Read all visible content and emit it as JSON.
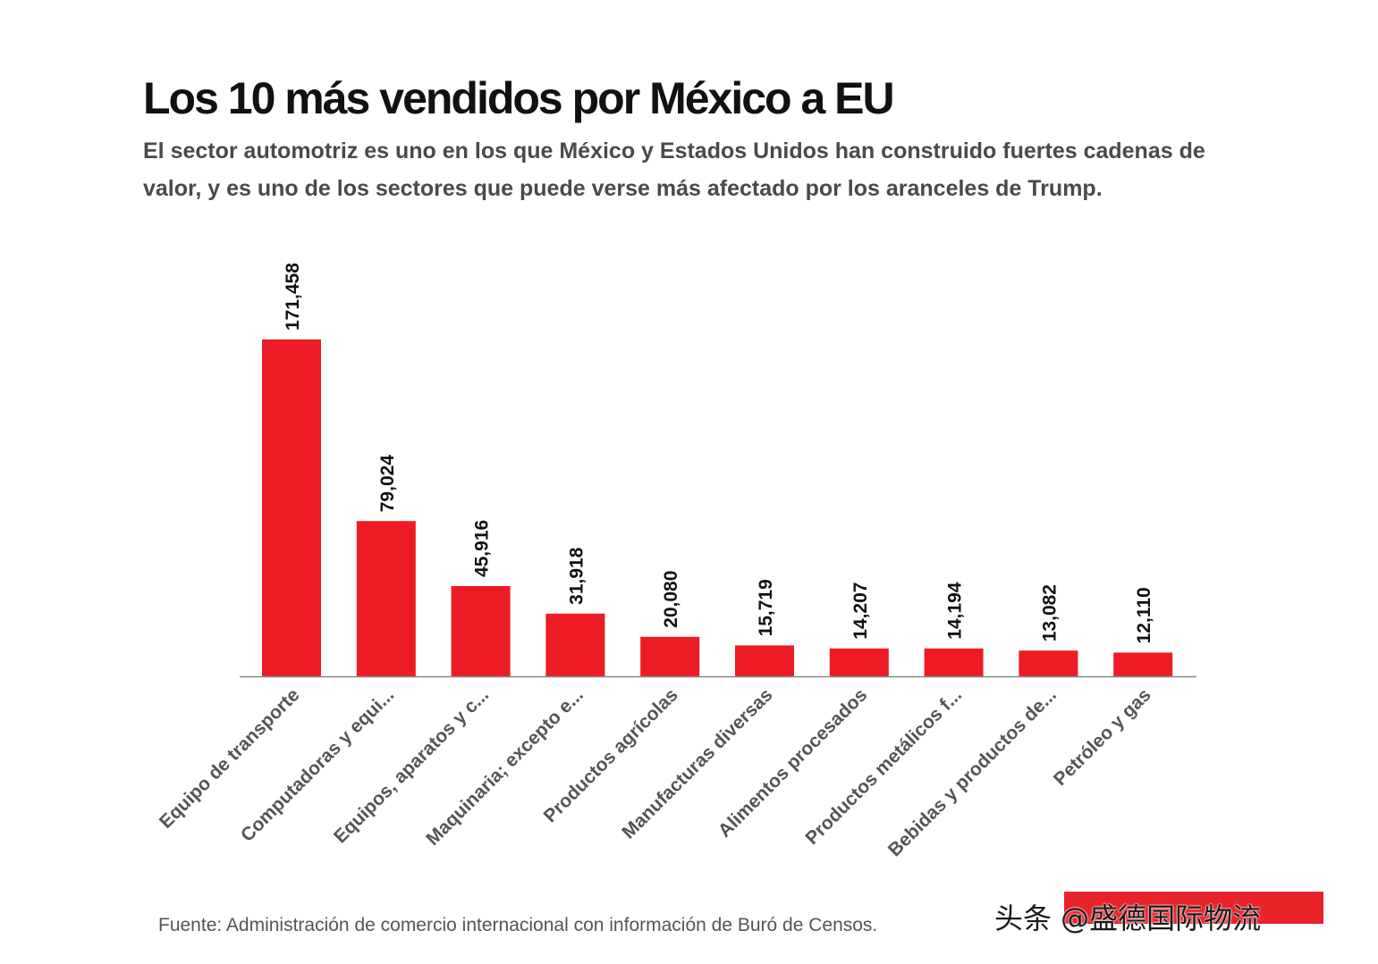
{
  "header": {
    "title": "Los 10 más vendidos por México a EU",
    "subtitle": "El sector automotriz es uno en los que México y Estados Unidos han construido fuertes cadenas de valor, y es uno de los sectores que puede verse más afectado por los aranceles de Trump."
  },
  "chart_data": {
    "type": "bar",
    "title": "Los 10 más vendidos por México a EU",
    "categories": [
      "Equipo de transporte",
      "Computadoras y equi...",
      "Equipos, aparatos y c...",
      "Maquinaria; excepto e...",
      "Productos agrícolas",
      "Manufacturas diversas",
      "Alimentos procesados",
      "Productos metálicos f...",
      "Bebidas y productos de...",
      "Petróleo y gas"
    ],
    "values": [
      171458,
      79024,
      45916,
      31918,
      20080,
      15719,
      14207,
      14194,
      13082,
      12110
    ],
    "value_labels": [
      "171,458",
      "79,024",
      "45,916",
      "31,918",
      "20,080",
      "15,719",
      "14,207",
      "14,194",
      "13,082",
      "12,110"
    ],
    "ylim": [
      0,
      171458
    ],
    "grid": false,
    "legend": "none",
    "colors": {
      "bar": "#ed1c24",
      "axis": "#888888",
      "label": "#555555",
      "value": "#111111"
    }
  },
  "footer": {
    "source": "Fuente: Administración de comercio internacional con información de Buró de Censos.",
    "watermark": "头条 @盛德国际物流",
    "watermark_color": "#e8232a"
  }
}
